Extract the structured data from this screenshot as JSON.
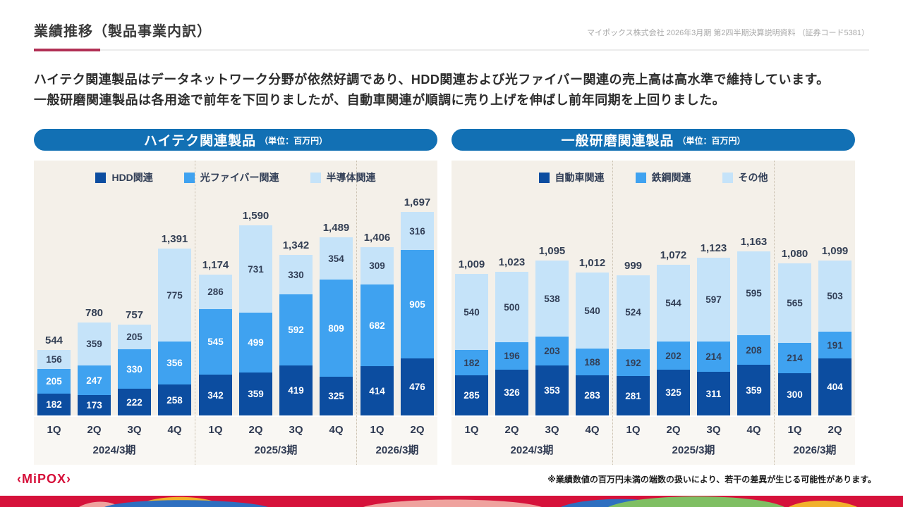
{
  "header": {
    "title": "業績推移（製品事業内訳）",
    "source_note": "マイポックス株式会社 2026年3月期 第2四半期決算説明資料 （証券コード5381）"
  },
  "intro": {
    "line1": "ハイテク関連製品はデータネットワーク分野が依然好調であり、HDD関連および光ファイバー関連の売上高は高水準で維持しています。",
    "line2": "一般研磨関連製品は各用途で前年を下回りましたが、自動車関連が順調に売り上げを伸ばし前年同期を上回りました。"
  },
  "chart_data": [
    {
      "type": "bar",
      "stacked": true,
      "title": "ハイテク関連製品",
      "unit_label": "（単位：百万円）",
      "legend_position": "top",
      "grid": false,
      "categories": [
        "1Q",
        "2Q",
        "3Q",
        "4Q",
        "1Q",
        "2Q",
        "3Q",
        "4Q",
        "1Q",
        "2Q"
      ],
      "groups": [
        {
          "label": "2024/3期",
          "count": 4
        },
        {
          "label": "2025/3期",
          "count": 4
        },
        {
          "label": "2026/3期",
          "count": 2
        }
      ],
      "series": [
        {
          "name": "HDD関連",
          "color": "#0c4da0",
          "label_color": "#ffffff",
          "values": [
            182,
            173,
            222,
            258,
            342,
            359,
            419,
            325,
            414,
            476
          ]
        },
        {
          "name": "光ファイバー関連",
          "color": "#3fa2f0",
          "label_color": "#ffffff",
          "values": [
            205,
            247,
            330,
            356,
            545,
            499,
            592,
            809,
            682,
            905
          ]
        },
        {
          "name": "半導体関連",
          "color": "#c5e3f9",
          "label_color": "#323f57",
          "values": [
            156,
            359,
            205,
            775,
            286,
            731,
            330,
            354,
            309,
            316
          ]
        }
      ],
      "totals": [
        "544",
        "780",
        "757",
        "1,391",
        "1,174",
        "1,590",
        "1,342",
        "1,489",
        "1,406",
        "1,697"
      ]
    },
    {
      "type": "bar",
      "stacked": true,
      "title": "一般研磨関連製品",
      "unit_label": "（単位：百万円）",
      "legend_position": "top",
      "grid": false,
      "categories": [
        "1Q",
        "2Q",
        "3Q",
        "4Q",
        "1Q",
        "2Q",
        "3Q",
        "4Q",
        "1Q",
        "2Q"
      ],
      "groups": [
        {
          "label": "2024/3期",
          "count": 4
        },
        {
          "label": "2025/3期",
          "count": 4
        },
        {
          "label": "2026/3期",
          "count": 2
        }
      ],
      "series": [
        {
          "name": "自動車関連",
          "color": "#0c4da0",
          "label_color": "#ffffff",
          "values": [
            285,
            326,
            353,
            283,
            281,
            325,
            311,
            359,
            300,
            404
          ]
        },
        {
          "name": "鉄鋼関連",
          "color": "#3fa2f0",
          "label_color": "#323f57",
          "values": [
            182,
            196,
            203,
            188,
            192,
            202,
            214,
            208,
            214,
            191
          ]
        },
        {
          "name": "その他",
          "color": "#c5e3f9",
          "label_color": "#323f57",
          "values": [
            540,
            500,
            538,
            540,
            524,
            544,
            597,
            595,
            565,
            503
          ]
        }
      ],
      "totals": [
        "1,009",
        "1,023",
        "1,095",
        "1,012",
        "999",
        "1,072",
        "1,123",
        "1,163",
        "1,080",
        "1,099"
      ]
    }
  ],
  "footer": {
    "note": "※業績数値の百万円未満の端数の扱いにより、若干の差異が生じる可能性があります。",
    "logo_text": "‹MiPOX›"
  },
  "colors": {
    "accent_underline": "#b13055",
    "pill_background": "#1270b4",
    "panel_background": "#f4f0e9",
    "series_dark": "#0c4da0",
    "series_medium": "#3fa2f0",
    "series_light": "#c5e3f9",
    "text_dark_navy": "#323f57",
    "logo_red": "#d6103a",
    "wave_base": "#d6123b",
    "wave_salmon": "#efa29e",
    "wave_blue": "#2e6fc0",
    "wave_yellow": "#f1b12b",
    "wave_green": "#7fbf63"
  }
}
